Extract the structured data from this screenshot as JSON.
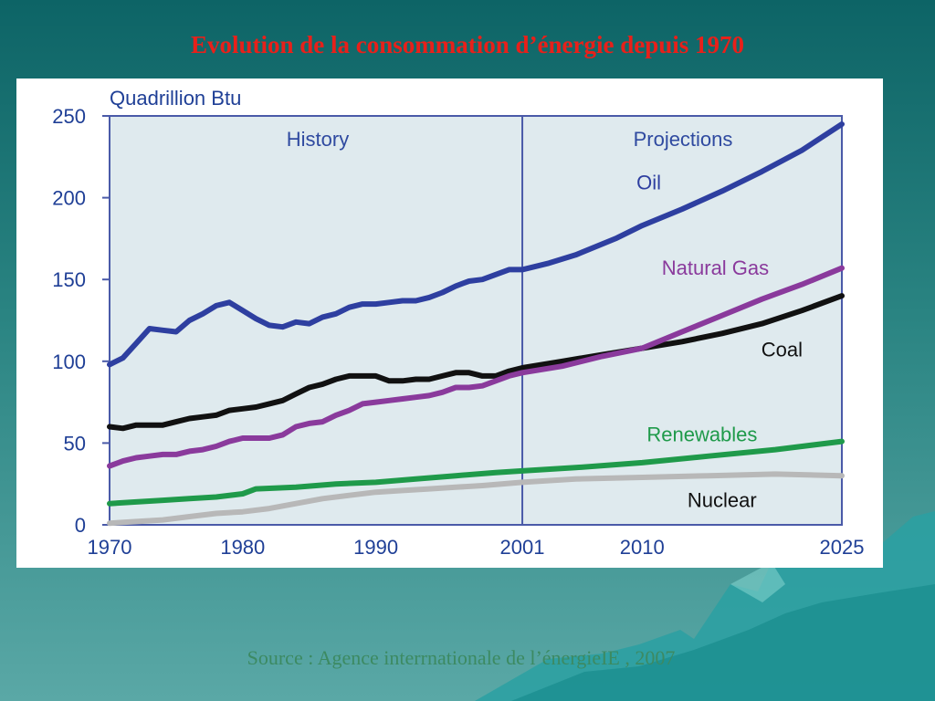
{
  "slide": {
    "title": "Evolution de la consommation d’énergie depuis 1970",
    "source": "Source : Agence interrnationale de l’énergieIE , 2007"
  },
  "colors": {
    "background_top": "#0d6466",
    "background_bottom": "#5aa8a6",
    "title": "#e8201a",
    "plot_background": "#dfeaee",
    "axis": "#1f3f96"
  },
  "chart_data": {
    "type": "line",
    "title": "",
    "ylabel": "Quadrillion Btu",
    "xlabel": "",
    "xlim": [
      1970,
      2025
    ],
    "ylim": [
      0,
      250
    ],
    "x_ticks": [
      1970,
      1980,
      1990,
      2001,
      2010,
      2025
    ],
    "y_ticks": [
      0,
      50,
      100,
      150,
      200,
      250
    ],
    "divider_x": 2001,
    "regions": [
      {
        "label": "History"
      },
      {
        "label": "Projections"
      }
    ],
    "grid": false,
    "legend": "inline labels",
    "series": [
      {
        "name": "Oil",
        "color": "#2e3fa0",
        "points": [
          [
            1970,
            98
          ],
          [
            1971,
            102
          ],
          [
            1972,
            111
          ],
          [
            1973,
            120
          ],
          [
            1974,
            119
          ],
          [
            1975,
            118
          ],
          [
            1976,
            125
          ],
          [
            1977,
            129
          ],
          [
            1978,
            134
          ],
          [
            1979,
            136
          ],
          [
            1980,
            131
          ],
          [
            1981,
            126
          ],
          [
            1982,
            122
          ],
          [
            1983,
            121
          ],
          [
            1984,
            124
          ],
          [
            1985,
            123
          ],
          [
            1986,
            127
          ],
          [
            1987,
            129
          ],
          [
            1988,
            133
          ],
          [
            1989,
            135
          ],
          [
            1990,
            135
          ],
          [
            1991,
            136
          ],
          [
            1992,
            137
          ],
          [
            1993,
            137
          ],
          [
            1994,
            139
          ],
          [
            1995,
            142
          ],
          [
            1996,
            146
          ],
          [
            1997,
            149
          ],
          [
            1998,
            150
          ],
          [
            1999,
            153
          ],
          [
            2000,
            156
          ],
          [
            2001,
            156
          ],
          [
            2003,
            160
          ],
          [
            2005,
            165
          ],
          [
            2008,
            175
          ],
          [
            2010,
            183
          ],
          [
            2013,
            193
          ],
          [
            2016,
            204
          ],
          [
            2019,
            216
          ],
          [
            2022,
            229
          ],
          [
            2025,
            245
          ]
        ]
      },
      {
        "name": "Natural Gas",
        "color": "#8a3a9c",
        "points": [
          [
            1970,
            36
          ],
          [
            1971,
            39
          ],
          [
            1972,
            41
          ],
          [
            1973,
            42
          ],
          [
            1974,
            43
          ],
          [
            1975,
            43
          ],
          [
            1976,
            45
          ],
          [
            1977,
            46
          ],
          [
            1978,
            48
          ],
          [
            1979,
            51
          ],
          [
            1980,
            53
          ],
          [
            1981,
            53
          ],
          [
            1982,
            53
          ],
          [
            1983,
            55
          ],
          [
            1984,
            60
          ],
          [
            1985,
            62
          ],
          [
            1986,
            63
          ],
          [
            1987,
            67
          ],
          [
            1988,
            70
          ],
          [
            1989,
            74
          ],
          [
            1990,
            75
          ],
          [
            1991,
            76
          ],
          [
            1992,
            77
          ],
          [
            1993,
            78
          ],
          [
            1994,
            79
          ],
          [
            1995,
            81
          ],
          [
            1996,
            84
          ],
          [
            1997,
            84
          ],
          [
            1998,
            85
          ],
          [
            1999,
            88
          ],
          [
            2000,
            91
          ],
          [
            2001,
            93
          ],
          [
            2004,
            97
          ],
          [
            2007,
            103
          ],
          [
            2010,
            108
          ],
          [
            2013,
            118
          ],
          [
            2016,
            128
          ],
          [
            2019,
            138
          ],
          [
            2022,
            147
          ],
          [
            2025,
            157
          ]
        ]
      },
      {
        "name": "Coal",
        "color": "#111111",
        "points": [
          [
            1970,
            60
          ],
          [
            1971,
            59
          ],
          [
            1972,
            61
          ],
          [
            1973,
            61
          ],
          [
            1974,
            61
          ],
          [
            1975,
            63
          ],
          [
            1976,
            65
          ],
          [
            1977,
            66
          ],
          [
            1978,
            67
          ],
          [
            1979,
            70
          ],
          [
            1980,
            71
          ],
          [
            1981,
            72
          ],
          [
            1982,
            74
          ],
          [
            1983,
            76
          ],
          [
            1984,
            80
          ],
          [
            1985,
            84
          ],
          [
            1986,
            86
          ],
          [
            1987,
            89
          ],
          [
            1988,
            91
          ],
          [
            1989,
            91
          ],
          [
            1990,
            91
          ],
          [
            1991,
            88
          ],
          [
            1992,
            88
          ],
          [
            1993,
            89
          ],
          [
            1994,
            89
          ],
          [
            1995,
            91
          ],
          [
            1996,
            93
          ],
          [
            1997,
            93
          ],
          [
            1998,
            91
          ],
          [
            1999,
            91
          ],
          [
            2000,
            94
          ],
          [
            2001,
            96
          ],
          [
            2004,
            100
          ],
          [
            2007,
            104
          ],
          [
            2010,
            108
          ],
          [
            2013,
            112
          ],
          [
            2016,
            117
          ],
          [
            2019,
            123
          ],
          [
            2022,
            131
          ],
          [
            2025,
            140
          ]
        ]
      },
      {
        "name": "Renewables",
        "color": "#1f9a4a",
        "points": [
          [
            1970,
            13
          ],
          [
            1972,
            14
          ],
          [
            1974,
            15
          ],
          [
            1976,
            16
          ],
          [
            1978,
            17
          ],
          [
            1980,
            19
          ],
          [
            1981,
            22
          ],
          [
            1984,
            23
          ],
          [
            1987,
            25
          ],
          [
            1990,
            26
          ],
          [
            1993,
            28
          ],
          [
            1996,
            30
          ],
          [
            1999,
            32
          ],
          [
            2001,
            33
          ],
          [
            2005,
            35
          ],
          [
            2010,
            38
          ],
          [
            2015,
            42
          ],
          [
            2020,
            46
          ],
          [
            2025,
            51
          ]
        ]
      },
      {
        "name": "Nuclear",
        "color": "#b8b8b8",
        "points": [
          [
            1970,
            1
          ],
          [
            1972,
            2
          ],
          [
            1974,
            3
          ],
          [
            1976,
            5
          ],
          [
            1978,
            7
          ],
          [
            1980,
            8
          ],
          [
            1982,
            10
          ],
          [
            1984,
            13
          ],
          [
            1986,
            16
          ],
          [
            1988,
            18
          ],
          [
            1990,
            20
          ],
          [
            1992,
            21
          ],
          [
            1994,
            22
          ],
          [
            1996,
            23
          ],
          [
            1998,
            24
          ],
          [
            2001,
            26
          ],
          [
            2005,
            28
          ],
          [
            2010,
            29
          ],
          [
            2015,
            30
          ],
          [
            2020,
            31
          ],
          [
            2025,
            30
          ]
        ]
      }
    ]
  }
}
